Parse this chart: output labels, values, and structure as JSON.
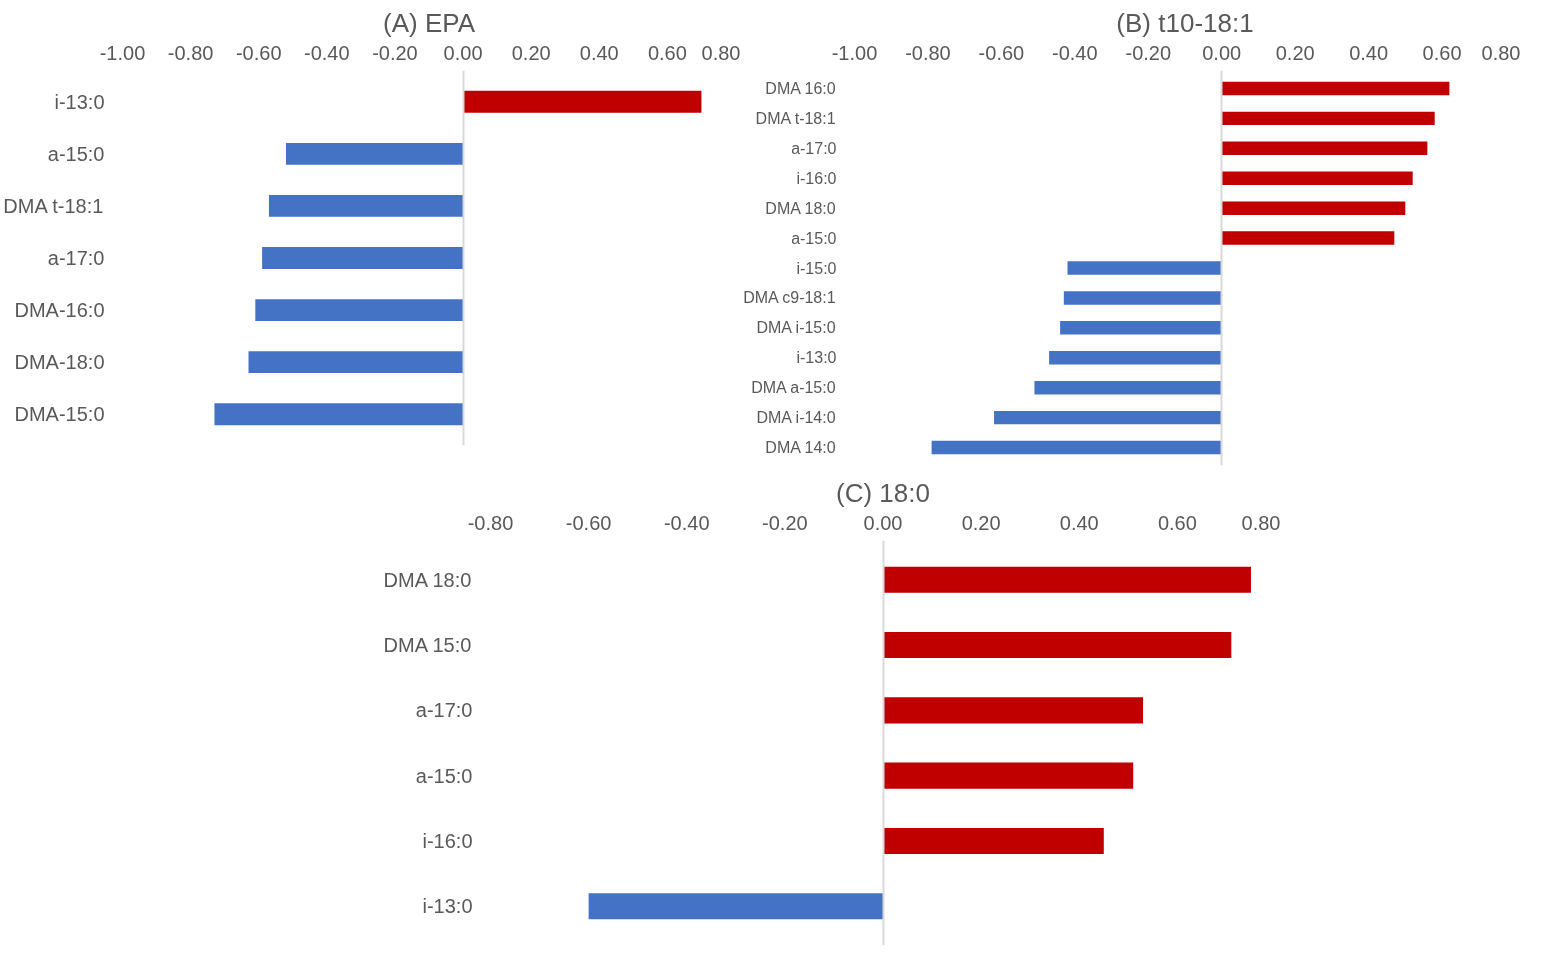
{
  "chart_data": [
    {
      "type": "bar",
      "orientation": "horizontal",
      "title": "(A) EPA",
      "categories": [
        "i-13:0",
        "a-15:0",
        "DMA t-18:1",
        "a-17:0",
        "DMA-16:0",
        "DMA-18:0",
        "DMA-15:0"
      ],
      "values": [
        0.7,
        -0.52,
        -0.57,
        -0.59,
        -0.61,
        -0.63,
        -0.73
      ],
      "colors": [
        "#c00000",
        "#4472c4",
        "#4472c4",
        "#4472c4",
        "#4472c4",
        "#4472c4",
        "#4472c4"
      ],
      "xlim": [
        -1.0,
        0.8
      ],
      "xticks": [
        {
          "value": -1.0,
          "label": "-1.00"
        },
        {
          "value": -0.8,
          "label": "-0.80"
        },
        {
          "value": -0.6,
          "label": "-0.60"
        },
        {
          "value": -0.4,
          "label": "-0.40"
        },
        {
          "value": -0.2,
          "label": "-0.20"
        },
        {
          "value": 0,
          "label": "0.00"
        },
        {
          "value": 0.2,
          "label": "0.20"
        },
        {
          "value": 0.4,
          "label": "0.40"
        },
        {
          "value": 0.6,
          "label": "0.60"
        },
        {
          "value": 0.8,
          "label": "0.80"
        }
      ]
    },
    {
      "type": "bar",
      "orientation": "horizontal",
      "title": "(B) t10-18:1",
      "categories": [
        "DMA 16:0",
        "DMA t-18:1",
        "a-17:0",
        "i-16:0",
        "DMA 18:0",
        "a-15:0",
        "i-15:0",
        "DMA c9-18:1",
        "DMA i-15:0",
        "i-13:0",
        "DMA a-15:0",
        "DMA i-14:0",
        "DMA 14:0"
      ],
      "values": [
        0.62,
        0.58,
        0.56,
        0.52,
        0.5,
        0.47,
        -0.42,
        -0.43,
        -0.44,
        -0.47,
        -0.51,
        -0.62,
        -0.79
      ],
      "colors": [
        "#c00000",
        "#c00000",
        "#c00000",
        "#c00000",
        "#c00000",
        "#c00000",
        "#4472c4",
        "#4472c4",
        "#4472c4",
        "#4472c4",
        "#4472c4",
        "#4472c4",
        "#4472c4"
      ],
      "xlim": [
        -1.0,
        0.8
      ],
      "xticks": [
        {
          "value": -1.0,
          "label": "-1.00"
        },
        {
          "value": -0.8,
          "label": "-0.80"
        },
        {
          "value": -0.6,
          "label": "-0.60"
        },
        {
          "value": -0.4,
          "label": "-0.40"
        },
        {
          "value": -0.2,
          "label": "-0.20"
        },
        {
          "value": 0,
          "label": "0.00"
        },
        {
          "value": 0.2,
          "label": "0.20"
        },
        {
          "value": 0.4,
          "label": "0.40"
        },
        {
          "value": 0.6,
          "label": "0.60"
        },
        {
          "value": 0.8,
          "label": "0.80"
        }
      ]
    },
    {
      "type": "bar",
      "orientation": "horizontal",
      "title": "(C) 18:0",
      "categories": [
        "DMA 18:0",
        "DMA 15:0",
        "a-17:0",
        "a-15:0",
        "i-16:0",
        "i-13:0"
      ],
      "values": [
        0.75,
        0.71,
        0.53,
        0.51,
        0.45,
        -0.6
      ],
      "colors": [
        "#c00000",
        "#c00000",
        "#c00000",
        "#c00000",
        "#c00000",
        "#4472c4"
      ],
      "xlim": [
        -0.8,
        0.8
      ],
      "xticks": [
        {
          "value": -0.8,
          "label": "-0.80"
        },
        {
          "value": -0.6,
          "label": "-0.60"
        },
        {
          "value": -0.4,
          "label": "-0.40"
        },
        {
          "value": -0.2,
          "label": "-0.20"
        },
        {
          "value": 0,
          "label": "0.00"
        },
        {
          "value": 0.2,
          "label": "0.20"
        },
        {
          "value": 0.4,
          "label": "0.40"
        },
        {
          "value": 0.6,
          "label": "0.60"
        },
        {
          "value": 0.8,
          "label": "0.80"
        }
      ]
    }
  ]
}
